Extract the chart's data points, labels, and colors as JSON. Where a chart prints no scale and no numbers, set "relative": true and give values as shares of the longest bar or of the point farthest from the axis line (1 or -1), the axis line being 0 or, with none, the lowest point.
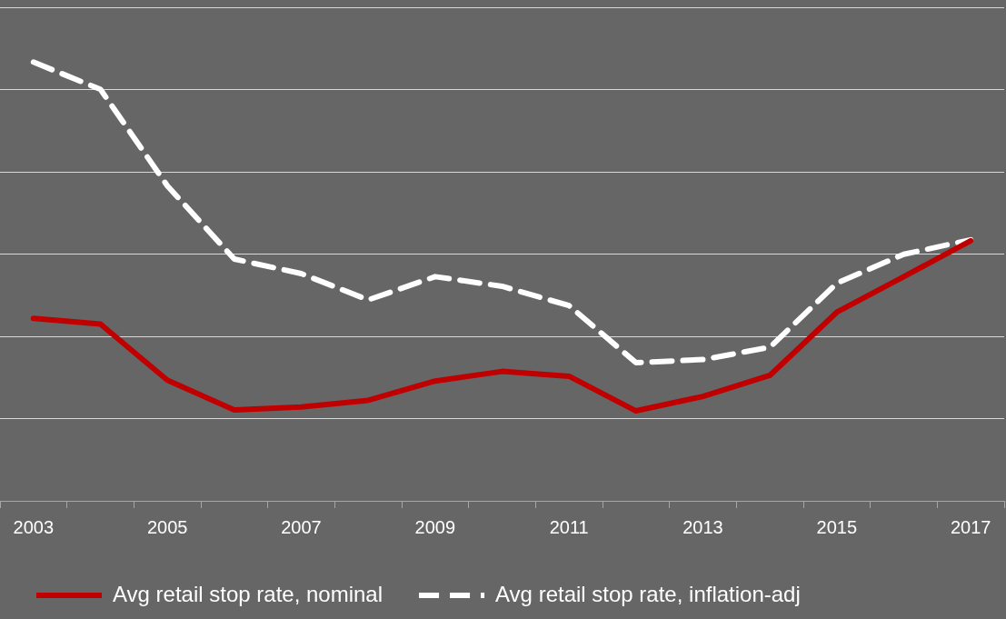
{
  "chart_data": {
    "type": "line",
    "relative": true,
    "categories": [
      "2003",
      null,
      "2005",
      null,
      "2007",
      null,
      "2009",
      null,
      "2011",
      null,
      "2013",
      null,
      "2015",
      null,
      "2017"
    ],
    "series": [
      {
        "name": "Avg retail stop rate, nominal",
        "color": "#c00000",
        "line_style": "solid",
        "values": [
          0.416,
          0.403,
          0.275,
          0.207,
          0.214,
          0.229,
          0.273,
          0.295,
          0.284,
          0.205,
          0.238,
          0.286,
          0.43,
          0.511,
          0.593
        ]
      },
      {
        "name": "Avg retail stop rate, inflation-adj",
        "color": "#ffffff",
        "line_style": "dashed",
        "values": [
          1.0,
          0.938,
          0.718,
          0.551,
          0.518,
          0.458,
          0.511,
          0.489,
          0.445,
          0.315,
          0.322,
          0.35,
          0.496,
          0.562,
          0.595
        ]
      }
    ],
    "grid": "y",
    "legend": "bottom",
    "marker": "none"
  }
}
